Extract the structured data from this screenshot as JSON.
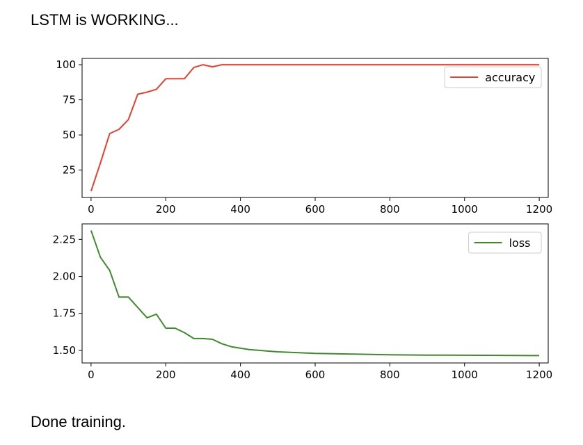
{
  "header": {
    "status_text": "LSTM is WORKING..."
  },
  "footer": {
    "status_text": "Done training."
  },
  "chart_data": [
    {
      "type": "line",
      "title": "",
      "xlabel": "",
      "ylabel": "",
      "xlim": [
        -24,
        1224
      ],
      "ylim": [
        5.5,
        104.5
      ],
      "x_ticks": [
        0,
        200,
        400,
        600,
        800,
        1000,
        1200
      ],
      "y_ticks": [
        25,
        50,
        75,
        100
      ],
      "y_tick_labels": [
        "25",
        "50",
        "75",
        "100"
      ],
      "legend_position": "top-right",
      "grid": false,
      "series": [
        {
          "name": "accuracy",
          "color": "#e8402e",
          "x": [
            0,
            25,
            50,
            75,
            100,
            125,
            150,
            175,
            200,
            225,
            250,
            275,
            300,
            325,
            350,
            375,
            400,
            450,
            500,
            600,
            700,
            800,
            900,
            1000,
            1100,
            1200
          ],
          "y": [
            10,
            30,
            51,
            54,
            61,
            79,
            80.5,
            82.5,
            90,
            90,
            90,
            98,
            100,
            98.5,
            100,
            100,
            100,
            100,
            100,
            100,
            100,
            100,
            100,
            100,
            100,
            100
          ]
        }
      ]
    },
    {
      "type": "line",
      "title": "",
      "xlabel": "",
      "ylabel": "",
      "xlim": [
        -24,
        1224
      ],
      "ylim": [
        1.415,
        2.355
      ],
      "x_ticks": [
        0,
        200,
        400,
        600,
        800,
        1000,
        1200
      ],
      "y_ticks": [
        1.5,
        1.75,
        2.0,
        2.25
      ],
      "y_tick_labels": [
        "1.50",
        "1.75",
        "2.00",
        "2.25"
      ],
      "legend_position": "top-right",
      "grid": false,
      "series": [
        {
          "name": "loss",
          "color": "#3c8c2a",
          "x": [
            0,
            25,
            50,
            75,
            100,
            125,
            150,
            175,
            200,
            225,
            250,
            275,
            300,
            325,
            350,
            375,
            400,
            425,
            450,
            500,
            550,
            600,
            700,
            800,
            900,
            1000,
            1100,
            1200
          ],
          "y": [
            2.31,
            2.13,
            2.04,
            1.86,
            1.86,
            1.79,
            1.72,
            1.745,
            1.65,
            1.65,
            1.62,
            1.58,
            1.58,
            1.575,
            1.545,
            1.525,
            1.515,
            1.505,
            1.5,
            1.49,
            1.485,
            1.48,
            1.475,
            1.47,
            1.468,
            1.467,
            1.466,
            1.465
          ]
        }
      ]
    }
  ]
}
